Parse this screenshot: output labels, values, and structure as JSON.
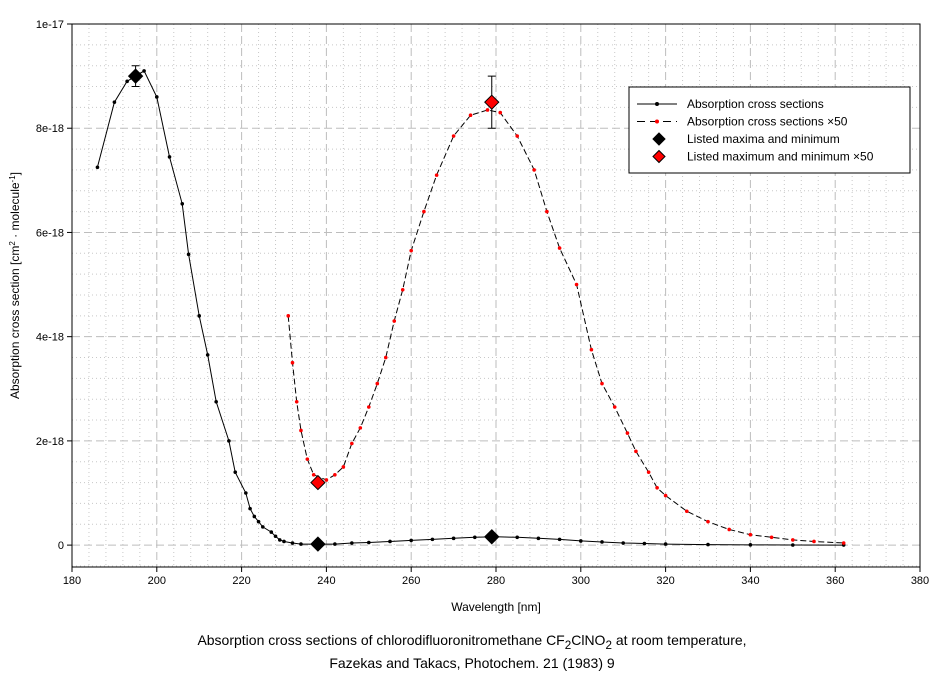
{
  "chart_data": {
    "type": "line",
    "xlabel": "Wavelength [nm]",
    "ylabel_parts": [
      "Absorption cross section [cm",
      "2",
      " · molecule",
      "-1",
      "]"
    ],
    "xlim": [
      180,
      380
    ],
    "ylim": [
      -4.2e-19,
      1e-17
    ],
    "xticks": [
      180,
      200,
      220,
      240,
      260,
      280,
      300,
      320,
      340,
      360,
      380
    ],
    "xtick_labels": [
      "180",
      "200",
      "220",
      "240",
      "260",
      "280",
      "300",
      "320",
      "340",
      "360",
      "380"
    ],
    "yticks": [
      0,
      2e-18,
      4e-18,
      6e-18,
      8e-18,
      1e-17
    ],
    "ytick_labels": [
      "0",
      "2e-18",
      "4e-18",
      "6e-18",
      "8e-18",
      "1e-17"
    ],
    "grid": true,
    "legend_position": "top-right",
    "series": [
      {
        "name": "Absorption cross sections",
        "color": "#000000",
        "style": "solid",
        "x": [
          186,
          190,
          193,
          197,
          200,
          203,
          206,
          207.5,
          210,
          212,
          214,
          217,
          218.5,
          221,
          222,
          223,
          224,
          225,
          227,
          228,
          229,
          230,
          232,
          234,
          238,
          242,
          246,
          250,
          255,
          260,
          265,
          270,
          275,
          280,
          285,
          290,
          295,
          300,
          305,
          310,
          315,
          320,
          330,
          340,
          350,
          362
        ],
        "y": [
          7.25e-18,
          8.5e-18,
          8.9e-18,
          9.1e-18,
          8.6e-18,
          7.45e-18,
          6.55e-18,
          5.58e-18,
          4.4e-18,
          3.65e-18,
          2.75e-18,
          2e-18,
          1.4e-18,
          1e-18,
          7e-19,
          5.5e-19,
          4.5e-19,
          3.5e-19,
          2.5e-19,
          1.7e-19,
          1e-19,
          7e-20,
          4e-20,
          2e-20,
          2e-20,
          2e-20,
          4e-20,
          5e-20,
          7e-20,
          9e-20,
          1.1e-19,
          1.3e-19,
          1.5e-19,
          1.6e-19,
          1.5e-19,
          1.3e-19,
          1.1e-19,
          8e-20,
          6e-20,
          4e-20,
          3e-20,
          2e-20,
          1e-20,
          5e-21,
          2e-21,
          1e-21
        ]
      },
      {
        "name": "Absorption cross sections ×50",
        "color": "#ff0000",
        "style": "dashed",
        "x": [
          231,
          232,
          233,
          234,
          235.5,
          237,
          240,
          242,
          244,
          246,
          248,
          250,
          252,
          254,
          256,
          258,
          260,
          263,
          266,
          270,
          274,
          278,
          281,
          285,
          289,
          292,
          295,
          299,
          302.5,
          305,
          308,
          311,
          313,
          316,
          318,
          320,
          325,
          330,
          335,
          340,
          345,
          350,
          355,
          362
        ],
        "y": [
          4.4e-18,
          3.5e-18,
          2.75e-18,
          2.2e-18,
          1.65e-18,
          1.35e-18,
          1.25e-18,
          1.35e-18,
          1.5e-18,
          1.95e-18,
          2.25e-18,
          2.65e-18,
          3.1e-18,
          3.6e-18,
          4.3e-18,
          4.9e-18,
          5.65e-18,
          6.4e-18,
          7.1e-18,
          7.85e-18,
          8.25e-18,
          8.35e-18,
          8.3e-18,
          7.85e-18,
          7.2e-18,
          6.4e-18,
          5.7e-18,
          5e-18,
          3.75e-18,
          3.1e-18,
          2.65e-18,
          2.15e-18,
          1.8e-18,
          1.4e-18,
          1.1e-18,
          9.5e-19,
          6.5e-19,
          4.5e-19,
          3e-19,
          2e-19,
          1.5e-19,
          1e-19,
          7e-20,
          4e-20
        ]
      },
      {
        "name": "Listed maxima and minimum",
        "color": "#000000",
        "style": "diamond",
        "x": [
          195,
          238,
          279
        ],
        "y": [
          9e-18,
          2e-20,
          1.6e-19
        ],
        "err": [
          2e-19,
          0,
          0
        ]
      },
      {
        "name": "Listed maximum and minimum ×50",
        "color": "#ff0000",
        "style": "diamond",
        "x": [
          238,
          279
        ],
        "y": [
          1.2e-18,
          8.5e-18
        ],
        "err": [
          0,
          5e-19
        ]
      }
    ]
  },
  "caption": {
    "line1_a": "Absorption cross sections of chlorodifluoronitromethane CF",
    "sub1": "2",
    "line1_b": "ClNO",
    "sub2": "2",
    "line1_c": " at room temperature,",
    "line2": "Fazekas and Takacs, Photochem. 21 (1983) 9"
  }
}
